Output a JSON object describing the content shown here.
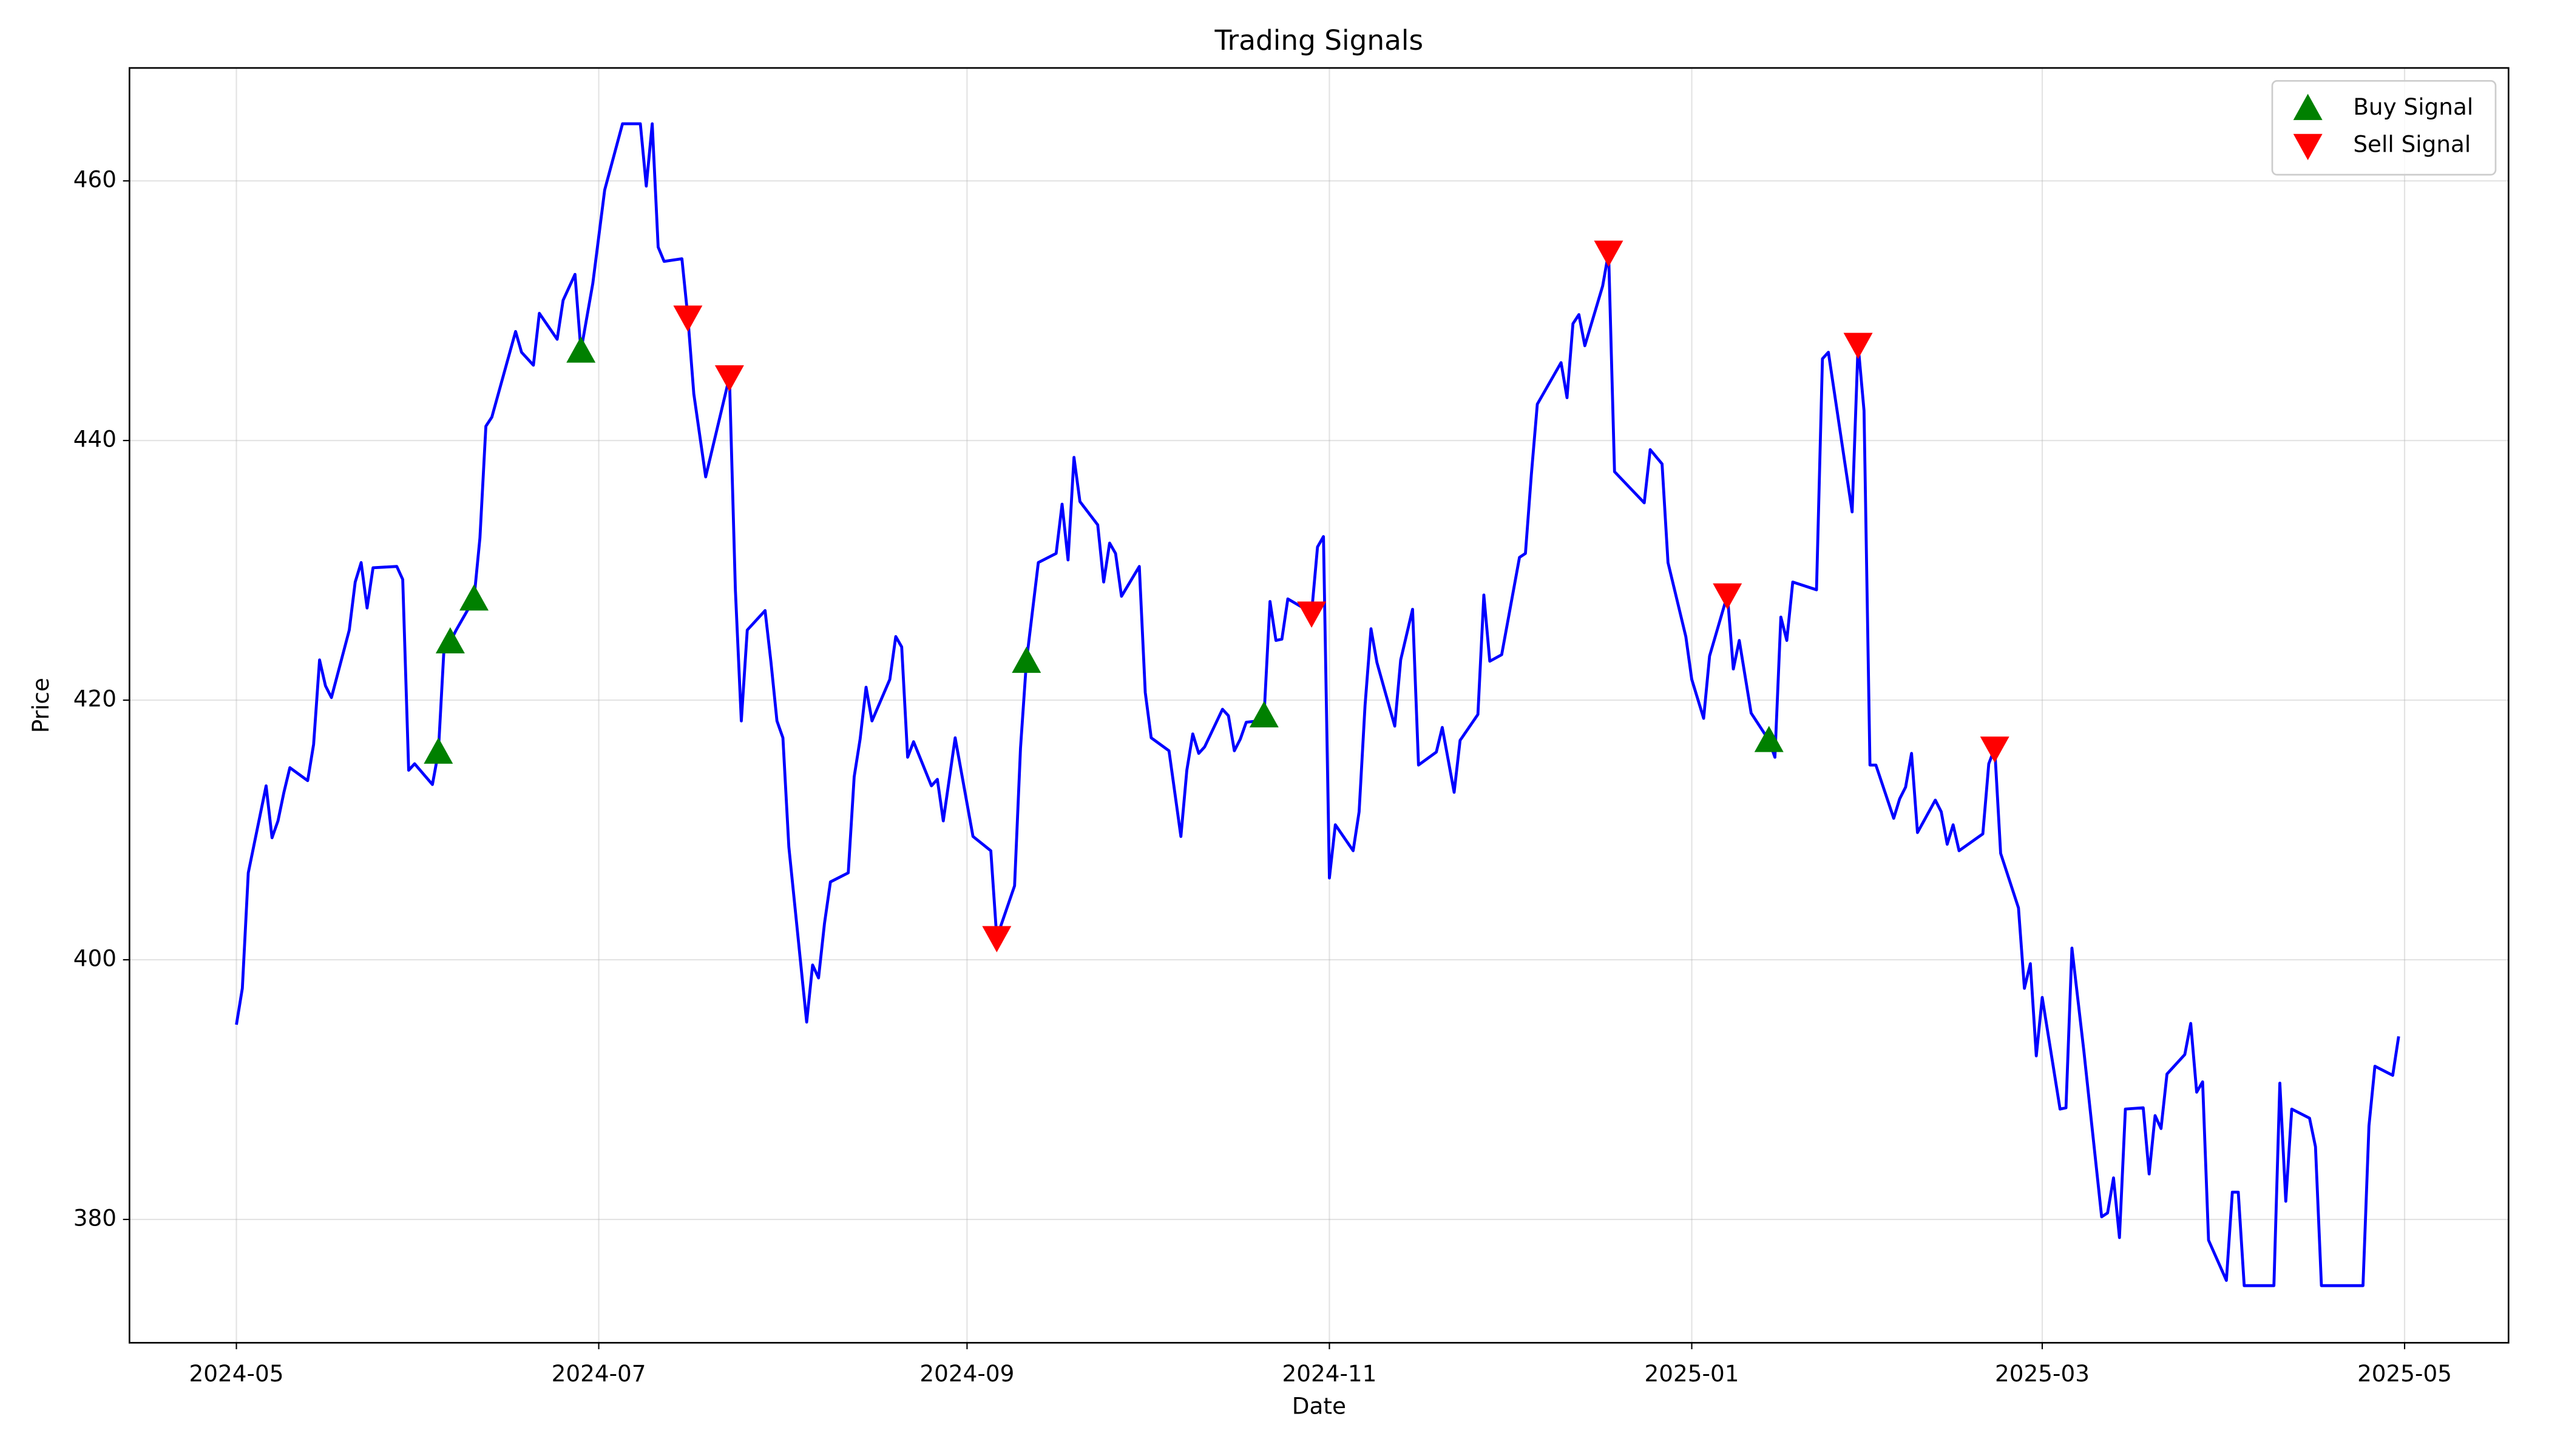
{
  "chart_data": {
    "type": "line",
    "title": "Trading Signals",
    "x_label": "Date",
    "y_label": "Price",
    "xlim": [
      -18,
      382.5
    ],
    "ylim": [
      370.5,
      468.7
    ],
    "xticks": [
      {
        "value": 0,
        "label": "2024-05"
      },
      {
        "value": 61,
        "label": "2024-07"
      },
      {
        "value": 123,
        "label": "2024-09"
      },
      {
        "value": 184,
        "label": "2024-11"
      },
      {
        "value": 245,
        "label": "2025-01"
      },
      {
        "value": 304,
        "label": "2025-03"
      },
      {
        "value": 365,
        "label": "2025-05"
      }
    ],
    "yticks": [
      380,
      400,
      420,
      440,
      460
    ],
    "grid": true,
    "legend": "upper right",
    "series": [
      {
        "type": "line",
        "color": "#0000ff",
        "x": [
          0,
          1,
          2,
          5,
          6,
          7,
          8,
          9,
          12,
          13,
          14,
          15,
          16,
          19,
          20,
          21,
          22,
          23,
          27,
          28,
          29,
          30,
          33,
          34,
          35,
          36,
          37,
          40,
          41,
          42,
          43,
          47,
          48,
          50,
          51,
          54,
          55,
          57,
          58,
          60,
          62,
          65,
          68,
          69,
          70,
          71,
          72,
          75,
          76,
          77,
          79,
          83,
          84,
          85,
          86,
          89,
          90,
          91,
          92,
          93,
          96,
          97,
          98,
          99,
          100,
          103,
          104,
          105,
          106,
          107,
          110,
          111,
          112,
          113,
          114,
          117,
          118,
          119,
          121,
          124,
          127,
          128,
          131,
          132,
          133,
          135,
          138,
          139,
          140,
          141,
          142,
          145,
          146,
          147,
          148,
          149,
          152,
          153,
          154,
          157,
          159,
          160,
          161,
          162,
          163,
          166,
          167,
          168,
          169,
          170,
          172,
          173,
          174,
          175,
          176,
          177,
          180,
          181,
          182,
          183,
          184,
          185,
          188,
          189,
          190,
          191,
          192,
          195,
          196,
          198,
          199,
          202,
          203,
          205,
          206,
          209,
          210,
          211,
          213,
          216,
          217,
          218,
          219,
          223,
          224,
          225,
          226,
          227,
          230,
          231,
          232,
          237,
          238,
          240,
          241,
          244,
          245,
          247,
          248,
          251,
          252,
          253,
          255,
          258,
          259,
          260,
          261,
          262,
          266,
          267,
          268,
          272,
          273,
          274,
          275,
          276,
          279,
          280,
          281,
          282,
          283,
          286,
          287,
          288,
          289,
          290,
          294,
          295,
          296,
          297,
          300,
          301,
          302,
          303,
          304,
          307,
          308,
          309,
          311,
          314,
          315,
          316,
          317,
          318,
          321,
          322,
          323,
          324,
          325,
          328,
          329,
          330,
          331,
          332,
          335,
          336,
          337,
          338,
          343,
          344,
          345,
          346,
          349,
          350,
          351,
          358,
          359,
          360,
          363,
          364
        ],
        "values": [
          395,
          397.8,
          406.7,
          413.4,
          409.4,
          410.7,
          412.9,
          414.8,
          413.8,
          416.6,
          423.1,
          421.1,
          420.2,
          425.4,
          429.1,
          430.6,
          427.1,
          430.2,
          430.3,
          429.3,
          414.6,
          415.1,
          413.5,
          416,
          424.4,
          424.5,
          425.4,
          427.8,
          432.5,
          441.1,
          441.8,
          448.4,
          446.8,
          445.8,
          449.8,
          447.8,
          450.8,
          452.8,
          446.9,
          452.1,
          459.3,
          464.4,
          464.4,
          459.6,
          464.4,
          454.9,
          453.8,
          454,
          449.5,
          443.6,
          437.2,
          444.9,
          428.5,
          418.4,
          425.4,
          426.9,
          422.9,
          418.4,
          417.1,
          408.7,
          395.2,
          399.6,
          398.6,
          402.8,
          406,
          406.7,
          414.1,
          417,
          421,
          418.4,
          421.6,
          424.9,
          424.1,
          415.6,
          416.8,
          413.4,
          413.9,
          410.7,
          417.1,
          409.5,
          408.4,
          401.7,
          405.7,
          416.3,
          423,
          430.6,
          431.3,
          435.1,
          430.8,
          438.7,
          435.3,
          433.5,
          429.1,
          432.1,
          431.3,
          428,
          430.3,
          420.6,
          417.1,
          416.1,
          409.5,
          414.6,
          417.4,
          415.9,
          416.4,
          419.3,
          418.8,
          416.1,
          417,
          418.3,
          418.4,
          418.8,
          427.6,
          424.6,
          424.7,
          427.8,
          427,
          426.7,
          431.8,
          432.6,
          406.3,
          410.4,
          408.4,
          411.4,
          419.6,
          425.5,
          422.9,
          418,
          423.1,
          427,
          415,
          416,
          417.9,
          412.9,
          416.9,
          418.9,
          428.1,
          423,
          423.5,
          431,
          431.3,
          437.4,
          442.8,
          446,
          443.3,
          449,
          449.7,
          447.3,
          451.9,
          454.5,
          437.6,
          435.2,
          439.3,
          438.2,
          430.6,
          424.9,
          421.6,
          418.6,
          423.4,
          428.1,
          422.4,
          424.6,
          419,
          416.9,
          415.6,
          426.4,
          424.6,
          429.1,
          428.5,
          446.3,
          446.8,
          434.5,
          447.4,
          442.3,
          415,
          415,
          410.9,
          412.4,
          413.3,
          415.9,
          409.8,
          412.3,
          411.4,
          408.9,
          410.4,
          408.4,
          409.7,
          415.1,
          416.3,
          408.2,
          404,
          397.8,
          399.7,
          392.6,
          397.1,
          388.5,
          388.6,
          400.9,
          393,
          380.2,
          380.5,
          383.2,
          378.6,
          388.5,
          388.6,
          383.5,
          388,
          387,
          391.2,
          392.7,
          395.1,
          389.8,
          390.6,
          378.4,
          375.3,
          382.1,
          382.1,
          374.9,
          374.9,
          390.5,
          381.4,
          388.5,
          387.8,
          385.6,
          374.9,
          374.9,
          387.2,
          391.8,
          391.1,
          394.1
        ]
      },
      {
        "type": "scatter",
        "name": "Buy Signal",
        "marker": "triangle-up",
        "color": "#008000",
        "x": [
          34,
          36,
          40,
          58,
          133,
          173,
          258
        ],
        "values": [
          416,
          424.5,
          427.8,
          446.9,
          423,
          418.8,
          416.9
        ]
      },
      {
        "type": "scatter",
        "name": "Sell Signal",
        "marker": "triangle-down",
        "color": "#ff0000",
        "x": [
          76,
          83,
          128,
          181,
          231,
          251,
          273,
          296
        ],
        "values": [
          449.5,
          444.9,
          401.7,
          426.7,
          454.5,
          428.1,
          447.4,
          416.3
        ]
      }
    ]
  }
}
